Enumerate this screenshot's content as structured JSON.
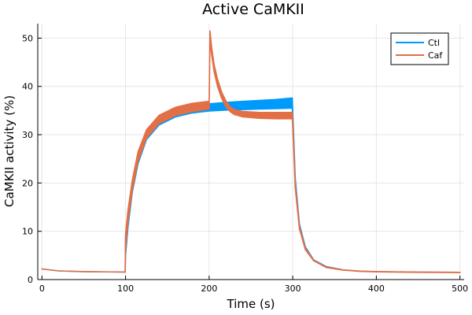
{
  "chart_data": {
    "type": "line",
    "title": "Active CaMKII",
    "xlabel": "Time (s)",
    "ylabel": "CaMKII activity (%)",
    "xlim": [
      -5,
      505
    ],
    "ylim": [
      0,
      53
    ],
    "xticks": [
      0,
      100,
      200,
      300,
      400,
      500
    ],
    "yticks": [
      0,
      10,
      20,
      30,
      40,
      50
    ],
    "grid": true,
    "legend_position": "top-right",
    "series": [
      {
        "name": "Ctl",
        "color": "#009AFA",
        "x": [
          0,
          20,
          50,
          99.5,
          100,
          103,
          108,
          115,
          125,
          140,
          160,
          180,
          200,
          220,
          240,
          260,
          280,
          299.5,
          300,
          303,
          308,
          315,
          325,
          340,
          360,
          380,
          400,
          450,
          500
        ],
        "lower": [
          2.2,
          1.8,
          1.65,
          1.55,
          5.0,
          11.0,
          18.0,
          24.0,
          29.0,
          32.0,
          33.7,
          34.5,
          34.9,
          35.1,
          35.2,
          35.3,
          35.4,
          35.5,
          33.0,
          20.0,
          11.0,
          6.5,
          4.0,
          2.6,
          2.0,
          1.75,
          1.65,
          1.55,
          1.5
        ],
        "upper": [
          2.2,
          1.8,
          1.65,
          1.55,
          9.0,
          14.0,
          20.0,
          26.0,
          30.5,
          33.5,
          35.2,
          36.0,
          36.4,
          36.7,
          36.9,
          37.1,
          37.3,
          37.6,
          35.0,
          21.0,
          11.5,
          6.8,
          4.1,
          2.7,
          2.0,
          1.75,
          1.65,
          1.55,
          1.5
        ]
      },
      {
        "name": "Caf",
        "color": "#E26F46",
        "x": [
          0,
          20,
          50,
          99.5,
          100,
          103,
          108,
          115,
          125,
          140,
          160,
          180,
          199.5,
          200,
          201,
          203,
          206,
          210,
          215,
          220,
          225,
          230,
          240,
          260,
          280,
          299.5,
          300,
          303,
          308,
          315,
          325,
          340,
          360,
          380,
          400,
          450,
          500
        ],
        "lower": [
          2.2,
          1.8,
          1.65,
          1.55,
          6.0,
          12.0,
          18.5,
          24.5,
          29.3,
          32.3,
          34.0,
          34.8,
          35.3,
          35.3,
          49.5,
          46.5,
          43.0,
          40.0,
          37.5,
          35.8,
          34.8,
          34.2,
          33.7,
          33.4,
          33.3,
          33.3,
          31.5,
          19.0,
          10.5,
          6.2,
          3.9,
          2.5,
          1.95,
          1.7,
          1.6,
          1.5,
          1.45
        ],
        "upper": [
          2.2,
          1.8,
          1.65,
          1.55,
          9.5,
          14.5,
          20.5,
          26.5,
          31.0,
          34.0,
          35.7,
          36.5,
          36.9,
          36.9,
          51.5,
          48.0,
          44.5,
          41.5,
          38.8,
          37.0,
          35.8,
          35.2,
          34.8,
          34.6,
          34.6,
          34.6,
          33.0,
          20.0,
          11.0,
          6.5,
          4.0,
          2.6,
          2.0,
          1.75,
          1.65,
          1.55,
          1.5
        ]
      }
    ]
  }
}
